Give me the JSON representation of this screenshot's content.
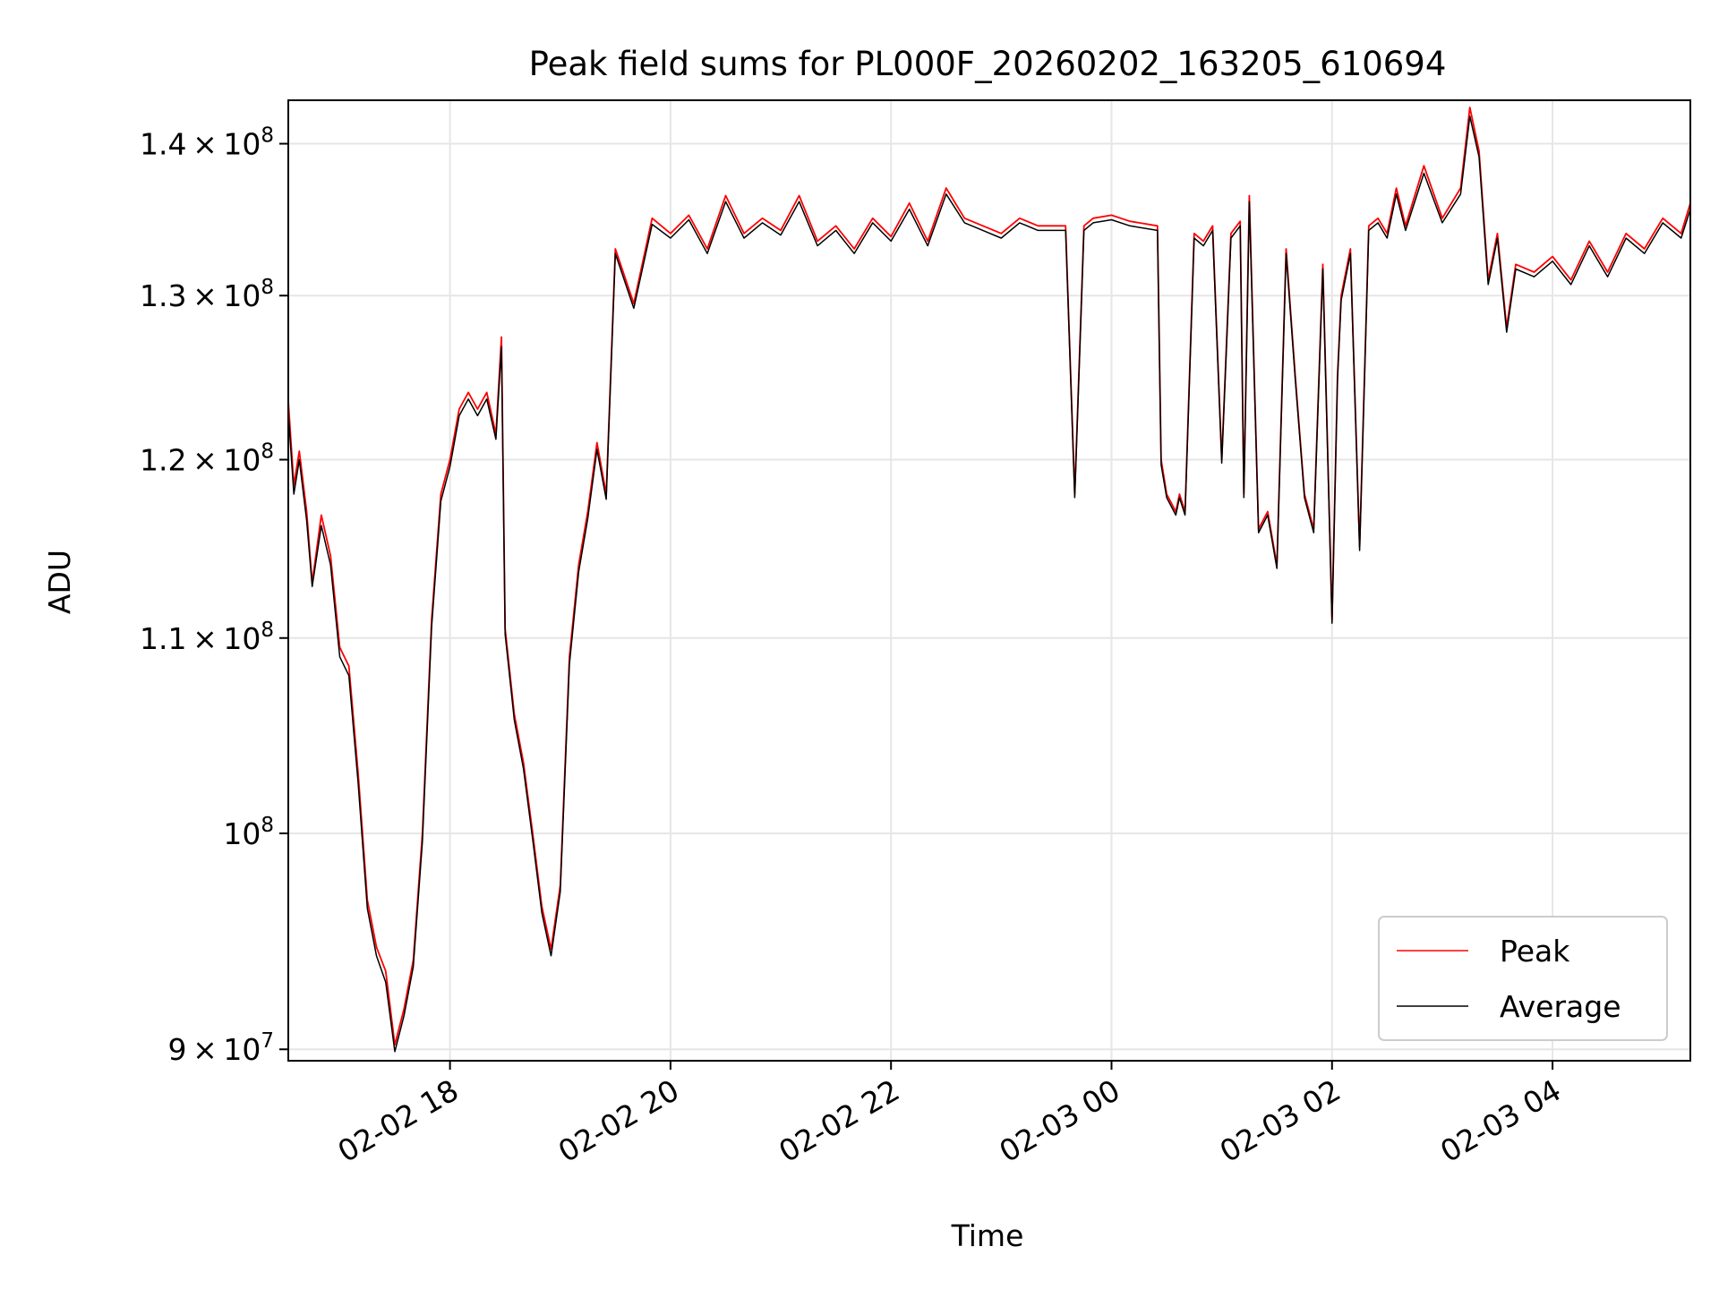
{
  "chart_data": {
    "type": "line",
    "title": "Peak field sums for PL000F_20260202_163205_610694",
    "xlabel": "Time",
    "ylabel": "ADU",
    "yscale": "log",
    "xlim": [
      "2026-02-02 16:32",
      "2026-02-03 05:15"
    ],
    "ylim": [
      89500000,
      143000000
    ],
    "grid": true,
    "legend_location": "lower right",
    "x_ticks": [
      {
        "t": "2026-02-02 18:00",
        "label": "02-02 18"
      },
      {
        "t": "2026-02-02 20:00",
        "label": "02-02 20"
      },
      {
        "t": "2026-02-02 22:00",
        "label": "02-02 22"
      },
      {
        "t": "2026-02-03 00:00",
        "label": "02-03 00"
      },
      {
        "t": "2026-02-03 02:00",
        "label": "02-03 02"
      },
      {
        "t": "2026-02-03 04:00",
        "label": "02-03 04"
      }
    ],
    "y_ticks": [
      {
        "value": 90000000,
        "base": "9",
        "exp": "7"
      },
      {
        "value": 100000000,
        "base": "",
        "exp": "8"
      },
      {
        "value": 110000000,
        "base": "1.1",
        "exp": "8"
      },
      {
        "value": 120000000,
        "base": "1.2",
        "exp": "8"
      },
      {
        "value": 130000000,
        "base": "1.3",
        "exp": "8"
      },
      {
        "value": 140000000,
        "base": "1.4",
        "exp": "8"
      }
    ],
    "x": [
      "2026-02-02 16:32",
      "2026-02-02 16:35",
      "2026-02-02 16:38",
      "2026-02-02 16:42",
      "2026-02-02 16:45",
      "2026-02-02 16:50",
      "2026-02-02 16:55",
      "2026-02-02 17:00",
      "2026-02-02 17:05",
      "2026-02-02 17:10",
      "2026-02-02 17:15",
      "2026-02-02 17:20",
      "2026-02-02 17:25",
      "2026-02-02 17:30",
      "2026-02-02 17:35",
      "2026-02-02 17:40",
      "2026-02-02 17:45",
      "2026-02-02 17:50",
      "2026-02-02 17:55",
      "2026-02-02 18:00",
      "2026-02-02 18:05",
      "2026-02-02 18:10",
      "2026-02-02 18:15",
      "2026-02-02 18:20",
      "2026-02-02 18:25",
      "2026-02-02 18:28",
      "2026-02-02 18:30",
      "2026-02-02 18:35",
      "2026-02-02 18:40",
      "2026-02-02 18:45",
      "2026-02-02 18:50",
      "2026-02-02 18:55",
      "2026-02-02 19:00",
      "2026-02-02 19:05",
      "2026-02-02 19:10",
      "2026-02-02 19:15",
      "2026-02-02 19:20",
      "2026-02-02 19:25",
      "2026-02-02 19:30",
      "2026-02-02 19:40",
      "2026-02-02 19:50",
      "2026-02-02 20:00",
      "2026-02-02 20:10",
      "2026-02-02 20:20",
      "2026-02-02 20:30",
      "2026-02-02 20:40",
      "2026-02-02 20:50",
      "2026-02-02 21:00",
      "2026-02-02 21:10",
      "2026-02-02 21:20",
      "2026-02-02 21:30",
      "2026-02-02 21:40",
      "2026-02-02 21:50",
      "2026-02-02 22:00",
      "2026-02-02 22:10",
      "2026-02-02 22:20",
      "2026-02-02 22:30",
      "2026-02-02 22:40",
      "2026-02-02 22:50",
      "2026-02-02 23:00",
      "2026-02-02 23:10",
      "2026-02-02 23:20",
      "2026-02-02 23:35",
      "2026-02-02 23:40",
      "2026-02-02 23:45",
      "2026-02-02 23:50",
      "2026-02-03 00:00",
      "2026-02-03 00:10",
      "2026-02-03 00:25",
      "2026-02-03 00:27",
      "2026-02-03 00:30",
      "2026-02-03 00:35",
      "2026-02-03 00:37",
      "2026-02-03 00:40",
      "2026-02-03 00:45",
      "2026-02-03 00:50",
      "2026-02-03 00:55",
      "2026-02-03 01:00",
      "2026-02-03 01:05",
      "2026-02-03 01:10",
      "2026-02-03 01:12",
      "2026-02-03 01:15",
      "2026-02-03 01:20",
      "2026-02-03 01:25",
      "2026-02-03 01:30",
      "2026-02-03 01:35",
      "2026-02-03 01:40",
      "2026-02-03 01:45",
      "2026-02-03 01:50",
      "2026-02-03 01:55",
      "2026-02-03 02:00",
      "2026-02-03 02:03",
      "2026-02-03 02:05",
      "2026-02-03 02:10",
      "2026-02-03 02:15",
      "2026-02-03 02:20",
      "2026-02-03 02:25",
      "2026-02-03 02:30",
      "2026-02-03 02:35",
      "2026-02-03 02:40",
      "2026-02-03 02:50",
      "2026-02-03 03:00",
      "2026-02-03 03:10",
      "2026-02-03 03:15",
      "2026-02-03 03:20",
      "2026-02-03 03:25",
      "2026-02-03 03:30",
      "2026-02-03 03:35",
      "2026-02-03 03:40",
      "2026-02-03 03:50",
      "2026-02-03 04:00",
      "2026-02-03 04:10",
      "2026-02-03 04:20",
      "2026-02-03 04:30",
      "2026-02-03 04:40",
      "2026-02-03 04:50",
      "2026-02-03 05:00",
      "2026-02-03 05:10",
      "2026-02-03 05:15"
    ],
    "series": [
      {
        "name": "Peak",
        "color": "#ff0000",
        "values": [
          123500000,
          118500000,
          120500000,
          117000000,
          113000000,
          116800000,
          114500000,
          109500000,
          108500000,
          103000000,
          96800000,
          94600000,
          93500000,
          90200000,
          91800000,
          94000000,
          100000000,
          111000000,
          118000000,
          120000000,
          123000000,
          124000000,
          123000000,
          124000000,
          121500000,
          127400000,
          110500000,
          106000000,
          103500000,
          100000000,
          96500000,
          94500000,
          97500000,
          109000000,
          114000000,
          117000000,
          121000000,
          118000000,
          133000000,
          129500000,
          135000000,
          134000000,
          135200000,
          133000000,
          136500000,
          134000000,
          135000000,
          134200000,
          136500000,
          133500000,
          134500000,
          133000000,
          135000000,
          133800000,
          136000000,
          133500000,
          137000000,
          135000000,
          134500000,
          134000000,
          135000000,
          134500000,
          134500000,
          118000000,
          134500000,
          135000000,
          135200000,
          134800000,
          134500000,
          120000000,
          118000000,
          117000000,
          118000000,
          117000000,
          134000000,
          133500000,
          134500000,
          120000000,
          134000000,
          134800000,
          118000000,
          136500000,
          116000000,
          117000000,
          114000000,
          133000000,
          125000000,
          118000000,
          116000000,
          132000000,
          111000000,
          125000000,
          130000000,
          133000000,
          115000000,
          134500000,
          135000000,
          134000000,
          137000000,
          134500000,
          138500000,
          135000000,
          137000000,
          142500000,
          139500000,
          131000000,
          134000000,
          128000000,
          132000000,
          131500000,
          132500000,
          131000000,
          133500000,
          131500000,
          134000000,
          133000000,
          135000000,
          134000000,
          136000000
        ]
      },
      {
        "name": "Average",
        "color": "#000000",
        "values": [
          122800000,
          118000000,
          120000000,
          116500000,
          112800000,
          116200000,
          114000000,
          109000000,
          108000000,
          102500000,
          96400000,
          94200000,
          93000000,
          89900000,
          91500000,
          93700000,
          99600000,
          110600000,
          117600000,
          119600000,
          122600000,
          123600000,
          122600000,
          123600000,
          121200000,
          126800000,
          110200000,
          105700000,
          103200000,
          99700000,
          96200000,
          94200000,
          97200000,
          108600000,
          113600000,
          116600000,
          120600000,
          117700000,
          132700000,
          129200000,
          134600000,
          133700000,
          134900000,
          132700000,
          136100000,
          133700000,
          134700000,
          133900000,
          136100000,
          133200000,
          134200000,
          132700000,
          134700000,
          133500000,
          135600000,
          133200000,
          136600000,
          134700000,
          134200000,
          133700000,
          134700000,
          134200000,
          134200000,
          117800000,
          134200000,
          134700000,
          134900000,
          134500000,
          134200000,
          119700000,
          117800000,
          116800000,
          117800000,
          116800000,
          133700000,
          133200000,
          134200000,
          119800000,
          133700000,
          134500000,
          117800000,
          136100000,
          115800000,
          116800000,
          113800000,
          132700000,
          124800000,
          117800000,
          115800000,
          131700000,
          110800000,
          124800000,
          129700000,
          132700000,
          114800000,
          134200000,
          134700000,
          133700000,
          136600000,
          134200000,
          138000000,
          134700000,
          136600000,
          141900000,
          139100000,
          130700000,
          133700000,
          127700000,
          131700000,
          131200000,
          132200000,
          130700000,
          133200000,
          131200000,
          133700000,
          132700000,
          134700000,
          133700000,
          135600000
        ]
      }
    ]
  }
}
